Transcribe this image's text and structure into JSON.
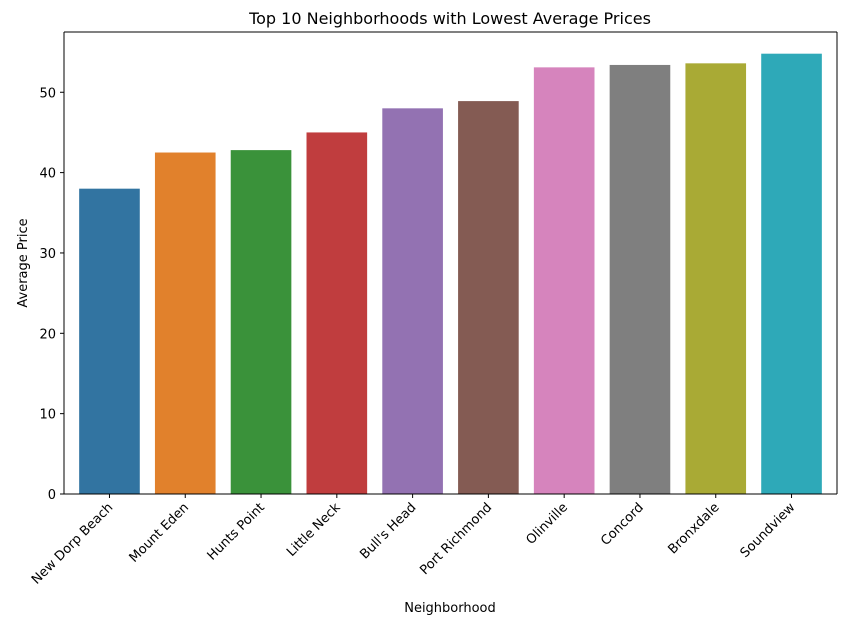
{
  "chart_data": {
    "type": "bar",
    "title": "Top 10 Neighborhoods with Lowest Average Prices",
    "xlabel": "Neighborhood",
    "ylabel": "Average Price",
    "ylim": [
      0,
      57.5
    ],
    "yticks": [
      "0",
      "10",
      "20",
      "30",
      "40",
      "50"
    ],
    "grid": false,
    "legend": "none",
    "categories": [
      "New Dorp Beach",
      "Mount Eden",
      "Hunts Point",
      "Little Neck",
      "Bull's Head",
      "Port Richmond",
      "Olinville",
      "Concord",
      "Bronxdale",
      "Soundview"
    ],
    "values": [
      38.0,
      42.5,
      42.8,
      45.0,
      48.0,
      48.9,
      53.1,
      53.4,
      53.6,
      54.8
    ],
    "colors": [
      "#3274a1",
      "#e1812c",
      "#3a923a",
      "#c03d3e",
      "#9372b2",
      "#845b53",
      "#d684bd",
      "#7f7f7f",
      "#a9aa35",
      "#2ea9b8"
    ]
  }
}
